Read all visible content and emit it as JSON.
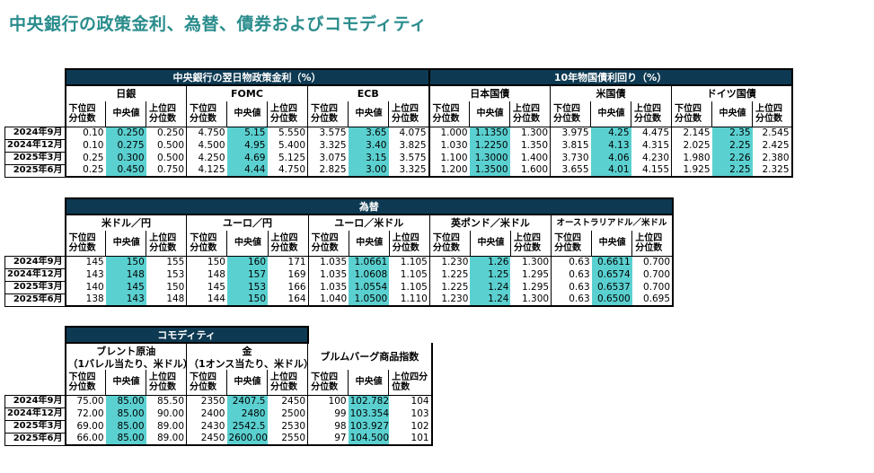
{
  "title": "中央銀行の政策金利、為替、債券およびコモディティ",
  "col_labels": {
    "low": "下位四分位数",
    "median": "中央値",
    "high": "上位四分位数"
  },
  "rows": [
    "2024年9月",
    "2024年12月",
    "2025年3月",
    "2025年6月"
  ],
  "rates": {
    "policy_title": "中央銀行の翌日物政策金利（%）",
    "bond_title": "10年物国債利回り（%）",
    "groups": [
      {
        "name": "日銀",
        "values": [
          [
            "0.10",
            "0.250",
            "0.250"
          ],
          [
            "0.10",
            "0.275",
            "0.500"
          ],
          [
            "0.25",
            "0.300",
            "0.500"
          ],
          [
            "0.25",
            "0.450",
            "0.750"
          ]
        ]
      },
      {
        "name": "FOMC",
        "values": [
          [
            "4.750",
            "5.15",
            "5.550"
          ],
          [
            "4.500",
            "4.95",
            "5.400"
          ],
          [
            "4.250",
            "4.69",
            "5.125"
          ],
          [
            "4.125",
            "4.44",
            "4.750"
          ]
        ]
      },
      {
        "name": "ECB",
        "values": [
          [
            "3.575",
            "3.65",
            "4.075"
          ],
          [
            "3.325",
            "3.40",
            "3.825"
          ],
          [
            "3.075",
            "3.15",
            "3.575"
          ],
          [
            "2.825",
            "3.00",
            "3.325"
          ]
        ]
      },
      {
        "name": "日本国債",
        "values": [
          [
            "1.000",
            "1.1350",
            "1.300"
          ],
          [
            "1.030",
            "1.2250",
            "1.350"
          ],
          [
            "1.100",
            "1.3000",
            "1.400"
          ],
          [
            "1.200",
            "1.3500",
            "1.600"
          ]
        ]
      },
      {
        "name": "米国債",
        "values": [
          [
            "3.975",
            "4.25",
            "4.475"
          ],
          [
            "3.815",
            "4.13",
            "4.315"
          ],
          [
            "3.730",
            "4.06",
            "4.230"
          ],
          [
            "3.655",
            "4.01",
            "4.155"
          ]
        ]
      },
      {
        "name": "ドイツ国債",
        "values": [
          [
            "2.145",
            "2.35",
            "2.545"
          ],
          [
            "2.025",
            "2.25",
            "2.425"
          ],
          [
            "1.980",
            "2.26",
            "2.380"
          ],
          [
            "1.925",
            "2.25",
            "2.325"
          ]
        ]
      }
    ]
  },
  "fx": {
    "title": "為替",
    "groups": [
      {
        "name": "米ドル／円",
        "values": [
          [
            "145",
            "150",
            "155"
          ],
          [
            "143",
            "148",
            "153"
          ],
          [
            "140",
            "145",
            "150"
          ],
          [
            "138",
            "143",
            "148"
          ]
        ]
      },
      {
        "name": "ユーロ／円",
        "values": [
          [
            "150",
            "160",
            "171"
          ],
          [
            "148",
            "157",
            "169"
          ],
          [
            "145",
            "153",
            "166"
          ],
          [
            "144",
            "150",
            "164"
          ]
        ]
      },
      {
        "name": "ユーロ／米ドル",
        "values": [
          [
            "1.035",
            "1.0661",
            "1.105"
          ],
          [
            "1.035",
            "1.0608",
            "1.105"
          ],
          [
            "1.035",
            "1.0554",
            "1.105"
          ],
          [
            "1.040",
            "1.0500",
            "1.110"
          ]
        ]
      },
      {
        "name": "英ポンド／米ドル",
        "values": [
          [
            "1.230",
            "1.26",
            "1.300"
          ],
          [
            "1.225",
            "1.25",
            "1.295"
          ],
          [
            "1.225",
            "1.24",
            "1.295"
          ],
          [
            "1.230",
            "1.24",
            "1.300"
          ]
        ]
      },
      {
        "name": "オーストラリアドル／米ドル",
        "values": [
          [
            "0.63",
            "0.6611",
            "0.700"
          ],
          [
            "0.63",
            "0.6574",
            "0.700"
          ],
          [
            "0.63",
            "0.6537",
            "0.700"
          ],
          [
            "0.63",
            "0.6500",
            "0.695"
          ]
        ]
      }
    ]
  },
  "commodity": {
    "title": "コモディティ",
    "groups": [
      {
        "name": "ブレント原油",
        "note": "（1バレル当たり、米ドル）",
        "values": [
          [
            "75.00",
            "85.00",
            "85.50"
          ],
          [
            "72.00",
            "85.00",
            "90.00"
          ],
          [
            "69.00",
            "85.00",
            "89.00"
          ],
          [
            "66.00",
            "85.00",
            "89.00"
          ]
        ]
      },
      {
        "name": "金",
        "note": "（1オンス当たり、米ドル）",
        "values": [
          [
            "2350",
            "2407.5",
            "2450"
          ],
          [
            "2400",
            "2480",
            "2500"
          ],
          [
            "2430",
            "2542.5",
            "2530"
          ],
          [
            "2450",
            "2600.00",
            "2550"
          ]
        ]
      },
      {
        "name": "ブルムバーグ商品指数",
        "note": "",
        "values": [
          [
            "100",
            "102.782",
            "104"
          ],
          [
            "99",
            "103.354",
            "103"
          ],
          [
            "98",
            "103.927",
            "102"
          ],
          [
            "97",
            "104.500",
            "101"
          ]
        ]
      }
    ]
  }
}
